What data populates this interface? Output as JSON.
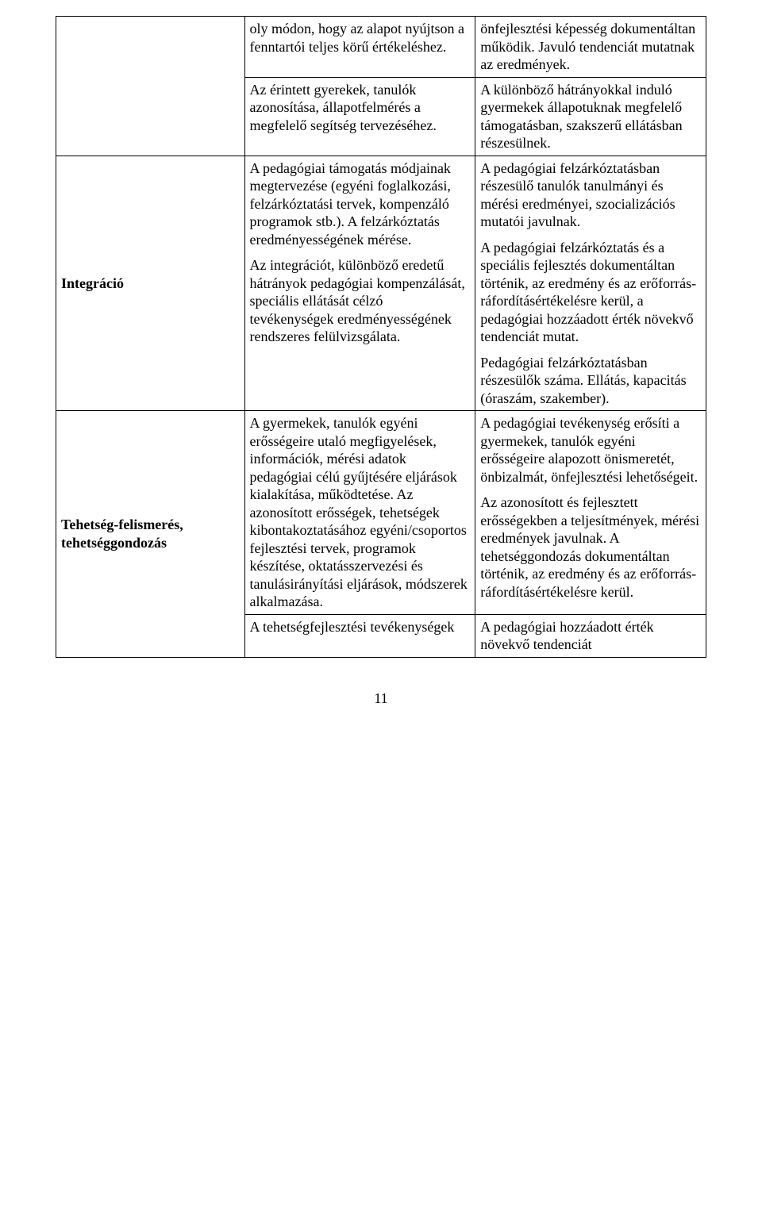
{
  "row_top": {
    "col2_p1": "oly módon, hogy az alapot nyújtson a fenntartói teljes körű értékeléshez.",
    "col2_p2": "Az érintett gyerekek, tanulók azonosítása, állapotfelmérés a megfelelő segítség tervezéséhez.",
    "col3_p1": "önfejlesztési képesség dokumentáltan működik. Javuló tendenciát mutatnak az eredmények.",
    "col3_p2": "A különböző hátrányokkal induló gyermekek állapotuknak megfelelő támogatásban, szakszerű ellátásban részesülnek."
  },
  "row_integracio": {
    "label": "Integráció",
    "col2_p1": "A pedagógiai támogatás módjainak megtervezése (egyéni foglalkozási, felzárkóztatási tervek, kompenzáló programok stb.). A felzárkóztatás eredményességének mérése.",
    "col2_p2": "Az integrációt, különböző eredetű hátrányok pedagógiai kompenzálását, speciális ellátását célzó tevékenységek eredményességének rendszeres felülvizsgálata.",
    "col3_p1": "A pedagógiai felzárkóztatásban részesülő tanulók tanulmányi és mérési eredményei, szocializációs mutatói javulnak.",
    "col3_p2": "A pedagógiai felzárkóztatás és a speciális fejlesztés dokumentáltan történik, az eredmény és az erőforrás-ráfordításértékelésre kerül, a pedagógiai hozzáadott érték növekvő tendenciát mutat.",
    "col3_p3": "Pedagógiai felzárkóztatásban részesülők száma. Ellátás, kapacitás (óraszám, szakember)."
  },
  "row_tehetseg": {
    "label": "Tehetség-felismerés, tehetséggondozás",
    "r1_col2": "A gyermekek, tanulók egyéni erősségeire utaló megfigyelések, információk, mérési adatok pedagógiai célú gyűjtésére eljárások kialakítása, működtetése. Az azonosított erősségek, tehetségek kibontakoztatásához egyéni/csoportos fejlesztési tervek, programok készítése, oktatásszervezési és tanulásirányítási eljárások, módszerek alkalmazása.",
    "r1_col3_p1": "A pedagógiai tevékenység erősíti a gyermekek, tanulók egyéni erősségeire alapozott önismeretét, önbizalmát, önfejlesztési lehetőségeit.",
    "r1_col3_p2": "Az azonosított és fejlesztett erősségekben a teljesítmények, mérési eredmények javulnak. A tehetséggondozás dokumentáltan történik, az eredmény és az erőforrás-ráfordításértékelésre kerül.",
    "r2_col2": "A tehetségfejlesztési tevékenységek",
    "r2_col3": "A pedagógiai hozzáadott érték növekvő tendenciát"
  },
  "page_number": "11"
}
